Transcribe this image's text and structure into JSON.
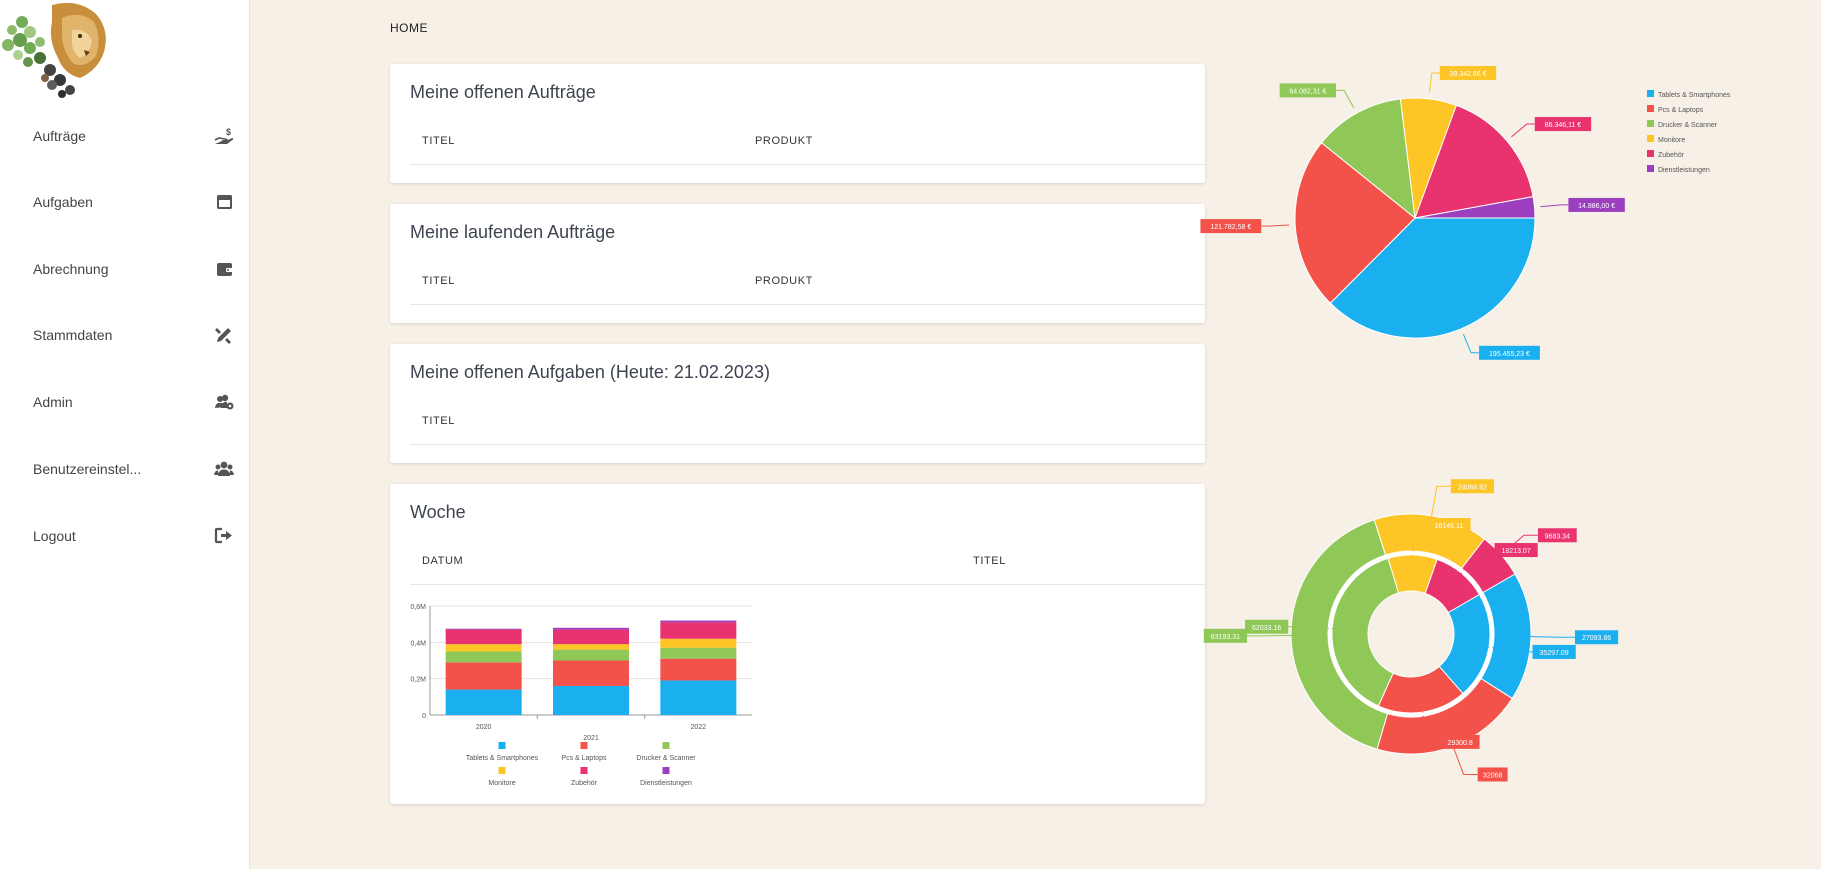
{
  "sidebar": {
    "items": [
      {
        "label": "Aufträge",
        "icon": "hand-dollar-icon"
      },
      {
        "label": "Aufgaben",
        "icon": "window-icon"
      },
      {
        "label": "Abrechnung",
        "icon": "wallet-icon"
      },
      {
        "label": "Stammdaten",
        "icon": "ruler-pencil-icon"
      },
      {
        "label": "Admin",
        "icon": "users-gear-icon"
      },
      {
        "label": "Benutzereinstel...",
        "icon": "users-icon"
      },
      {
        "label": "Logout",
        "icon": "sign-out-icon"
      }
    ]
  },
  "breadcrumb": "HOME",
  "cards": {
    "open_orders": {
      "title": "Meine offenen Aufträge",
      "col1": "TITEL",
      "col2": "PRODUKT"
    },
    "running_orders": {
      "title": "Meine laufenden Aufträge",
      "col1": "TITEL",
      "col2": "PRODUKT"
    },
    "open_tasks": {
      "title": "Meine offenen Aufgaben (Heute: 21.02.2023)",
      "col1": "TITEL"
    },
    "week": {
      "title": "Woche",
      "col1": "DATUM",
      "col2": "TITEL"
    }
  },
  "colors": {
    "Tablets & Smartphones": "#1ab0f0",
    "Pcs & Laptops": "#f2524a",
    "Drucker & Scanner": "#8fc857",
    "Monitore": "#fdc525",
    "Zubehör": "#e8336e",
    "Dienstleistungen": "#9c3fbf"
  },
  "chart_data": [
    {
      "type": "bar",
      "stacked": true,
      "categories": [
        "2020",
        "2021",
        "2022"
      ],
      "ylim": [
        0,
        0.6
      ],
      "yticks": [
        "0",
        "0,2M",
        "0,4M",
        "0,6M"
      ],
      "series": [
        {
          "name": "Tablets & Smartphones",
          "values": [
            0.14,
            0.16,
            0.19
          ]
        },
        {
          "name": "Pcs & Laptops",
          "values": [
            0.15,
            0.14,
            0.12
          ]
        },
        {
          "name": "Drucker & Scanner",
          "values": [
            0.06,
            0.06,
            0.06
          ]
        },
        {
          "name": "Monitore",
          "values": [
            0.04,
            0.03,
            0.05
          ]
        },
        {
          "name": "Zubehör",
          "values": [
            0.08,
            0.08,
            0.09
          ]
        },
        {
          "name": "Dienstleistungen",
          "values": [
            0.005,
            0.01,
            0.01
          ]
        }
      ],
      "legend": "bottom"
    },
    {
      "type": "pie",
      "series": [
        {
          "name": "Tablets & Smartphones",
          "value": 195455.23,
          "label": "195.455,23 €"
        },
        {
          "name": "Pcs & Laptops",
          "value": 121782.58,
          "label": "121.782,58 €"
        },
        {
          "name": "Drucker & Scanner",
          "value": 64082.31,
          "label": "64.082,31 €"
        },
        {
          "name": "Monitore",
          "value": 39342.86,
          "label": "39.342,86 €"
        },
        {
          "name": "Zubehör",
          "value": 86346.11,
          "label": "86.346,11 €"
        },
        {
          "name": "Dienstleistungen",
          "value": 14886.0,
          "label": "14.886,00 €"
        }
      ],
      "legend": "right"
    },
    {
      "type": "pie",
      "donut": true,
      "rings": [
        {
          "name": "outer",
          "values": [
            {
              "name": "Tablets & Smartphones",
              "value": 27093.86,
              "label": "27093.86"
            },
            {
              "name": "Pcs & Laptops",
              "value": 32068,
              "label": "32068"
            },
            {
              "name": "Drucker & Scanner",
              "value": 63193.31,
              "label": "63193.31"
            },
            {
              "name": "Monitore",
              "value": 24066.82,
              "label": "24066.82"
            },
            {
              "name": "Zubehör",
              "value": 9683.34,
              "label": "9683.34"
            }
          ]
        },
        {
          "name": "inner",
          "values": [
            {
              "name": "Tablets & Smartphones",
              "value": 35297.09,
              "label": "35297.09"
            },
            {
              "name": "Pcs & Laptops",
              "value": 29300.8,
              "label": "29300.8"
            },
            {
              "name": "Drucker & Scanner",
              "value": 62033.16,
              "label": "62033.16"
            },
            {
              "name": "Monitore",
              "value": 16146.11,
              "label": "16146.11"
            },
            {
              "name": "Zubehör",
              "value": 18213.07,
              "label": "18213.07"
            }
          ]
        }
      ]
    }
  ]
}
